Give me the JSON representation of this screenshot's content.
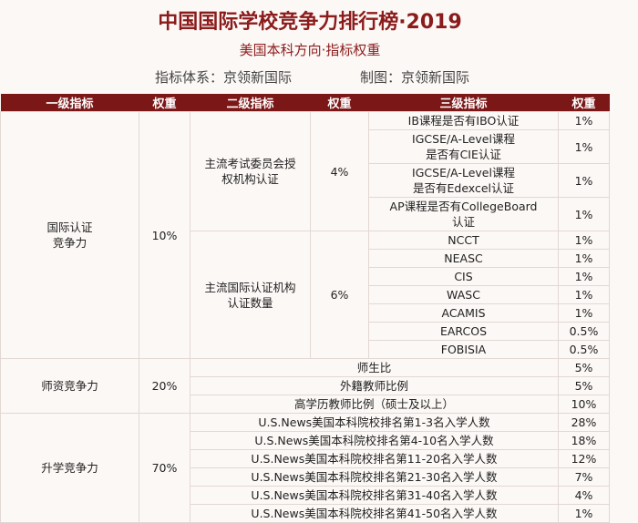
{
  "header": {
    "title": "中国国际学校竞争力排行榜·2019",
    "subtitle": "美国本科方向·指标权重",
    "credits": [
      "指标体系：京领新国际",
      "制图：京领新国际"
    ]
  },
  "table": {
    "columns": [
      "一级指标",
      "权重",
      "二级指标",
      "权重",
      "三级指标",
      "权重"
    ],
    "groups": [
      {
        "level1": "国际认证\n竞争力",
        "weight": "10%",
        "subgroups": [
          {
            "level2": "主流考试委员会授\n权机构认证",
            "weight": "4%",
            "items": [
              {
                "name": "IB课程是否有IBO认证",
                "weight": "1%"
              },
              {
                "name": "IGCSE/A-Level课程\n是否有CIE认证",
                "weight": "1%"
              },
              {
                "name": "IGCSE/A-Level课程\n是否有Edexcel认证",
                "weight": "1%"
              },
              {
                "name": "AP课程是否有CollegeBoard\n认证",
                "weight": "1%"
              }
            ]
          },
          {
            "level2": "主流国际认证机构\n认证数量",
            "weight": "6%",
            "items": [
              {
                "name": "NCCT",
                "weight": "1%"
              },
              {
                "name": "NEASC",
                "weight": "1%"
              },
              {
                "name": "CIS",
                "weight": "1%"
              },
              {
                "name": "WASC",
                "weight": "1%"
              },
              {
                "name": "ACAMIS",
                "weight": "1%"
              },
              {
                "name": "EARCOS",
                "weight": "0.5%"
              },
              {
                "name": "FOBISIA",
                "weight": "0.5%"
              }
            ]
          }
        ]
      },
      {
        "level1": "师资竞争力",
        "weight": "20%",
        "items": [
          {
            "name": "师生比",
            "weight": "5%"
          },
          {
            "name": "外籍教师比例",
            "weight": "5%"
          },
          {
            "name": "高学历教师比例（硕士及以上）",
            "weight": "10%"
          }
        ]
      },
      {
        "level1": "升学竞争力",
        "weight": "70%",
        "items": [
          {
            "name": "U.S.News美国本科院校排名第1-3名入学人数",
            "weight": "28%"
          },
          {
            "name": "U.S.News美国本科院校排名第4-10名入学人数",
            "weight": "18%"
          },
          {
            "name": "U.S.News美国本科院校排名第11-20名入学人数",
            "weight": "12%"
          },
          {
            "name": "U.S.News美国本科院校排名第21-30名入学人数",
            "weight": "7%"
          },
          {
            "name": "U.S.News美国本科院校排名第31-40名入学人数",
            "weight": "4%"
          },
          {
            "name": "U.S.News美国本科院校排名第41-50名入学人数",
            "weight": "1%"
          }
        ]
      }
    ]
  }
}
